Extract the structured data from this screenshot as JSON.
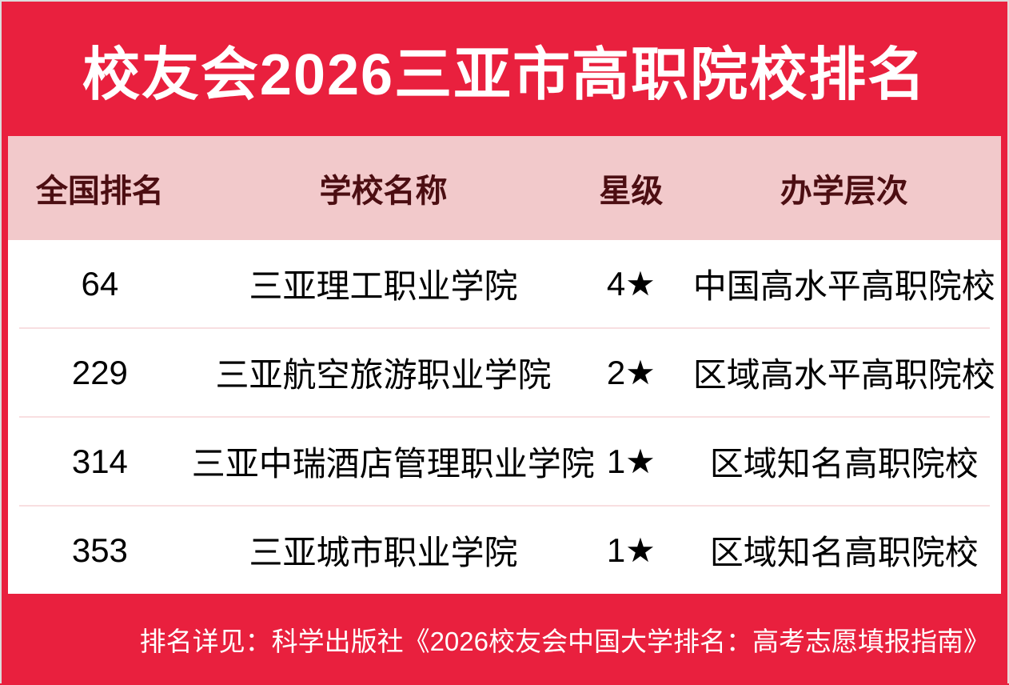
{
  "title": "校友会2026三亚市高职院校排名",
  "table": {
    "columns": [
      "全国排名",
      "学校名称",
      "星级",
      "办学层次"
    ],
    "rows": [
      {
        "rank": "64",
        "school": "三亚理工职业学院",
        "stars": "4★",
        "level": "中国高水平高职院校"
      },
      {
        "rank": "229",
        "school": "三亚航空旅游职业学院",
        "stars": "2★",
        "level": "区域高水平高职院校"
      },
      {
        "rank": "314",
        "school": "三亚中瑞酒店管理职业学院",
        "stars": "1★",
        "level": "区域知名高职院校"
      },
      {
        "rank": "353",
        "school": "三亚城市职业学院",
        "stars": "1★",
        "level": "区域知名高职院校"
      }
    ]
  },
  "footer": {
    "note": "排名详见：科学出版社《2026校友会中国大学排名：高考志愿填报指南》"
  },
  "colors": {
    "background_red": "#E9203E",
    "header_pink": "#F2C9CB",
    "header_text_maroon": "#4C0E12",
    "row_background": "#FFFFFF",
    "row_text": "#000000",
    "row_divider_pink": "#F8DFE1",
    "title_text": "#FFFFFF",
    "footer_text": "#FFFFFF"
  },
  "chart_data": {
    "type": "table",
    "title": "校友会2026三亚市高职院校排名",
    "columns": [
      "全国排名",
      "学校名称",
      "星级",
      "办学层次"
    ],
    "rows": [
      [
        "64",
        "三亚理工职业学院",
        "4★",
        "中国高水平高职院校"
      ],
      [
        "229",
        "三亚航空旅游职业学院",
        "2★",
        "区域高水平高职院校"
      ],
      [
        "314",
        "三亚中瑞酒店管理职业学院",
        "1★",
        "区域知名高职院校"
      ],
      [
        "353",
        "三亚城市职业学院",
        "1★",
        "区域知名高职院校"
      ]
    ],
    "footnote": "排名详见：科学出版社《2026校友会中国大学排名：高考志愿填报指南》"
  }
}
